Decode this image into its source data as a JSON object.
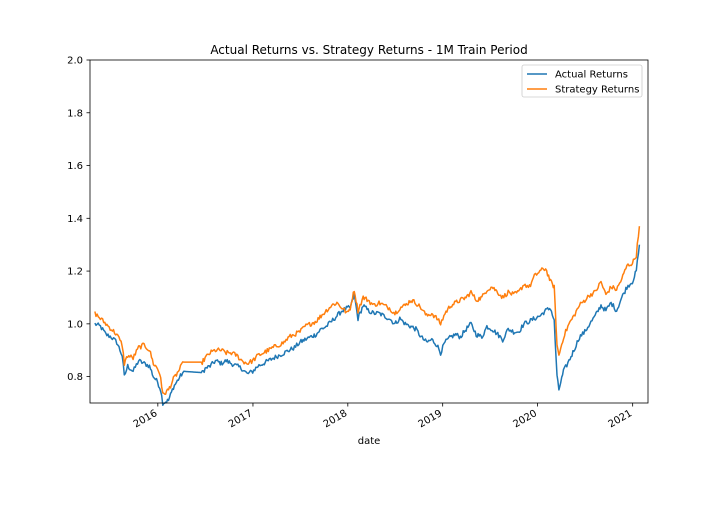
{
  "chart_data": {
    "type": "line",
    "title": "Actual Returns vs. Strategy Returns - 1M Train Period",
    "xlabel": "date",
    "ylabel": "",
    "xlim": [
      "2015-04-15",
      "2021-03-01"
    ],
    "ylim": [
      0.7,
      2.0
    ],
    "x_ticks": [
      {
        "date": "2016-01-01",
        "label": "2016"
      },
      {
        "date": "2017-01-01",
        "label": "2017"
      },
      {
        "date": "2018-01-01",
        "label": "2018"
      },
      {
        "date": "2019-01-01",
        "label": "2019"
      },
      {
        "date": "2020-01-01",
        "label": "2020"
      },
      {
        "date": "2021-01-01",
        "label": "2021"
      }
    ],
    "y_ticks": [
      {
        "value": 0.8,
        "label": "0.8"
      },
      {
        "value": 1.0,
        "label": "1.0"
      },
      {
        "value": 1.2,
        "label": "1.2"
      },
      {
        "value": 1.4,
        "label": "1.4"
      },
      {
        "value": 1.6,
        "label": "1.6"
      },
      {
        "value": 1.8,
        "label": "1.8"
      },
      {
        "value": 2.0,
        "label": "2.0"
      }
    ],
    "grid": false,
    "legend_position": "top-right",
    "series": [
      {
        "name": "Actual Returns",
        "color": "#1f77b4",
        "points": [
          [
            "2015-05-04",
            1.0
          ],
          [
            "2015-05-25",
            0.99
          ],
          [
            "2015-06-15",
            0.96
          ],
          [
            "2015-07-06",
            0.95
          ],
          [
            "2015-07-27",
            0.93
          ],
          [
            "2015-08-17",
            0.88
          ],
          [
            "2015-08-25",
            0.8
          ],
          [
            "2015-09-07",
            0.84
          ],
          [
            "2015-09-28",
            0.82
          ],
          [
            "2015-10-19",
            0.86
          ],
          [
            "2015-11-09",
            0.85
          ],
          [
            "2015-11-30",
            0.84
          ],
          [
            "2015-12-15",
            0.8
          ],
          [
            "2015-12-31",
            0.78
          ],
          [
            "2016-01-12",
            0.75
          ],
          [
            "2016-01-20",
            0.7
          ],
          [
            "2016-02-11",
            0.71
          ],
          [
            "2016-03-01",
            0.76
          ],
          [
            "2016-03-20",
            0.79
          ],
          [
            "2016-04-10",
            0.82
          ],
          [
            "2016-06-20",
            0.815
          ],
          [
            "2016-07-01",
            0.83
          ],
          [
            "2016-07-20",
            0.84
          ],
          [
            "2016-08-10",
            0.86
          ],
          [
            "2016-09-01",
            0.85
          ],
          [
            "2016-09-20",
            0.86
          ],
          [
            "2016-10-10",
            0.85
          ],
          [
            "2016-10-31",
            0.84
          ],
          [
            "2016-11-20",
            0.83
          ],
          [
            "2016-12-10",
            0.81
          ],
          [
            "2016-12-31",
            0.82
          ],
          [
            "2017-01-20",
            0.84
          ],
          [
            "2017-02-10",
            0.85
          ],
          [
            "2017-03-01",
            0.86
          ],
          [
            "2017-03-20",
            0.87
          ],
          [
            "2017-04-10",
            0.88
          ],
          [
            "2017-05-01",
            0.89
          ],
          [
            "2017-05-20",
            0.9
          ],
          [
            "2017-06-10",
            0.91
          ],
          [
            "2017-07-01",
            0.93
          ],
          [
            "2017-07-20",
            0.94
          ],
          [
            "2017-08-10",
            0.95
          ],
          [
            "2017-09-01",
            0.96
          ],
          [
            "2017-09-20",
            0.98
          ],
          [
            "2017-10-10",
            0.99
          ],
          [
            "2017-10-31",
            1.01
          ],
          [
            "2017-11-20",
            1.03
          ],
          [
            "2017-12-10",
            1.05
          ],
          [
            "2017-12-31",
            1.06
          ],
          [
            "2018-01-10",
            1.06
          ],
          [
            "2018-01-26",
            1.11
          ],
          [
            "2018-02-09",
            1.02
          ],
          [
            "2018-03-01",
            1.07
          ],
          [
            "2018-03-20",
            1.05
          ],
          [
            "2018-04-10",
            1.04
          ],
          [
            "2018-05-01",
            1.04
          ],
          [
            "2018-05-20",
            1.03
          ],
          [
            "2018-06-10",
            1.02
          ],
          [
            "2018-07-01",
            1.0
          ],
          [
            "2018-07-20",
            1.02
          ],
          [
            "2018-08-10",
            1.0
          ],
          [
            "2018-09-01",
            0.99
          ],
          [
            "2018-09-20",
            0.98
          ],
          [
            "2018-10-10",
            0.95
          ],
          [
            "2018-10-31",
            0.93
          ],
          [
            "2018-11-20",
            0.94
          ],
          [
            "2018-12-10",
            0.92
          ],
          [
            "2018-12-24",
            0.89
          ],
          [
            "2019-01-10",
            0.93
          ],
          [
            "2019-02-01",
            0.95
          ],
          [
            "2019-02-20",
            0.96
          ],
          [
            "2019-03-10",
            0.95
          ],
          [
            "2019-04-01",
            0.98
          ],
          [
            "2019-04-20",
            1.0
          ],
          [
            "2019-05-10",
            0.96
          ],
          [
            "2019-06-01",
            0.95
          ],
          [
            "2019-06-20",
            0.99
          ],
          [
            "2019-07-10",
            0.98
          ],
          [
            "2019-08-01",
            0.96
          ],
          [
            "2019-08-20",
            0.94
          ],
          [
            "2019-09-10",
            0.98
          ],
          [
            "2019-10-01",
            0.97
          ],
          [
            "2019-10-20",
            0.97
          ],
          [
            "2019-11-10",
            1.0
          ],
          [
            "2019-12-01",
            1.01
          ],
          [
            "2019-12-20",
            1.02
          ],
          [
            "2020-01-10",
            1.03
          ],
          [
            "2020-02-01",
            1.05
          ],
          [
            "2020-02-20",
            1.06
          ],
          [
            "2020-03-05",
            1.01
          ],
          [
            "2020-03-16",
            0.8
          ],
          [
            "2020-03-23",
            0.75
          ],
          [
            "2020-04-10",
            0.82
          ],
          [
            "2020-05-01",
            0.86
          ],
          [
            "2020-05-20",
            0.9
          ],
          [
            "2020-06-10",
            0.95
          ],
          [
            "2020-07-01",
            0.97
          ],
          [
            "2020-07-20",
            1.0
          ],
          [
            "2020-08-10",
            1.03
          ],
          [
            "2020-09-01",
            1.07
          ],
          [
            "2020-09-20",
            1.05
          ],
          [
            "2020-10-10",
            1.08
          ],
          [
            "2020-10-31",
            1.05
          ],
          [
            "2020-11-20",
            1.1
          ],
          [
            "2020-12-10",
            1.14
          ],
          [
            "2020-12-31",
            1.16
          ],
          [
            "2021-01-15",
            1.2
          ],
          [
            "2021-01-27",
            1.3
          ]
        ]
      },
      {
        "name": "Strategy Returns",
        "color": "#ff7f0e",
        "points": [
          [
            "2015-05-04",
            1.04
          ],
          [
            "2015-05-25",
            1.02
          ],
          [
            "2015-06-15",
            1.0
          ],
          [
            "2015-07-06",
            0.98
          ],
          [
            "2015-07-27",
            0.96
          ],
          [
            "2015-08-17",
            0.92
          ],
          [
            "2015-08-25",
            0.85
          ],
          [
            "2015-09-07",
            0.88
          ],
          [
            "2015-09-28",
            0.87
          ],
          [
            "2015-10-19",
            0.91
          ],
          [
            "2015-11-09",
            0.92
          ],
          [
            "2015-11-30",
            0.9
          ],
          [
            "2015-12-15",
            0.85
          ],
          [
            "2015-12-31",
            0.83
          ],
          [
            "2016-01-12",
            0.8
          ],
          [
            "2016-01-20",
            0.73
          ],
          [
            "2016-02-11",
            0.75
          ],
          [
            "2016-03-01",
            0.79
          ],
          [
            "2016-03-20",
            0.82
          ],
          [
            "2016-04-10",
            0.855
          ],
          [
            "2016-06-20",
            0.855
          ],
          [
            "2016-07-01",
            0.87
          ],
          [
            "2016-07-20",
            0.89
          ],
          [
            "2016-08-10",
            0.9
          ],
          [
            "2016-09-01",
            0.9
          ],
          [
            "2016-09-20",
            0.89
          ],
          [
            "2016-10-10",
            0.89
          ],
          [
            "2016-10-31",
            0.88
          ],
          [
            "2016-11-20",
            0.86
          ],
          [
            "2016-12-10",
            0.85
          ],
          [
            "2016-12-31",
            0.86
          ],
          [
            "2017-01-20",
            0.88
          ],
          [
            "2017-02-10",
            0.89
          ],
          [
            "2017-03-01",
            0.9
          ],
          [
            "2017-03-20",
            0.91
          ],
          [
            "2017-04-10",
            0.92
          ],
          [
            "2017-05-01",
            0.93
          ],
          [
            "2017-05-20",
            0.95
          ],
          [
            "2017-06-10",
            0.96
          ],
          [
            "2017-07-01",
            0.97
          ],
          [
            "2017-07-20",
            0.99
          ],
          [
            "2017-08-10",
            1.0
          ],
          [
            "2017-09-01",
            1.01
          ],
          [
            "2017-09-20",
            1.03
          ],
          [
            "2017-10-10",
            1.05
          ],
          [
            "2017-10-31",
            1.07
          ],
          [
            "2017-11-20",
            1.08
          ],
          [
            "2017-12-10",
            1.06
          ],
          [
            "2017-12-31",
            1.04
          ],
          [
            "2018-01-10",
            1.06
          ],
          [
            "2018-01-26",
            1.13
          ],
          [
            "2018-02-09",
            1.05
          ],
          [
            "2018-03-01",
            1.1
          ],
          [
            "2018-03-20",
            1.09
          ],
          [
            "2018-04-10",
            1.07
          ],
          [
            "2018-05-01",
            1.08
          ],
          [
            "2018-05-20",
            1.07
          ],
          [
            "2018-06-10",
            1.06
          ],
          [
            "2018-07-01",
            1.04
          ],
          [
            "2018-07-20",
            1.06
          ],
          [
            "2018-08-10",
            1.07
          ],
          [
            "2018-09-01",
            1.09
          ],
          [
            "2018-09-20",
            1.08
          ],
          [
            "2018-10-10",
            1.06
          ],
          [
            "2018-10-31",
            1.03
          ],
          [
            "2018-11-20",
            1.04
          ],
          [
            "2018-12-10",
            1.02
          ],
          [
            "2018-12-24",
            1.0
          ],
          [
            "2019-01-10",
            1.04
          ],
          [
            "2019-02-01",
            1.07
          ],
          [
            "2019-02-20",
            1.08
          ],
          [
            "2019-03-10",
            1.09
          ],
          [
            "2019-04-01",
            1.1
          ],
          [
            "2019-04-20",
            1.12
          ],
          [
            "2019-05-10",
            1.09
          ],
          [
            "2019-06-01",
            1.1
          ],
          [
            "2019-06-20",
            1.13
          ],
          [
            "2019-07-10",
            1.14
          ],
          [
            "2019-08-01",
            1.12
          ],
          [
            "2019-08-20",
            1.1
          ],
          [
            "2019-09-10",
            1.12
          ],
          [
            "2019-10-01",
            1.11
          ],
          [
            "2019-10-20",
            1.12
          ],
          [
            "2019-11-10",
            1.15
          ],
          [
            "2019-12-01",
            1.14
          ],
          [
            "2019-12-20",
            1.18
          ],
          [
            "2020-01-10",
            1.2
          ],
          [
            "2020-02-01",
            1.21
          ],
          [
            "2020-02-20",
            1.16
          ],
          [
            "2020-03-05",
            1.14
          ],
          [
            "2020-03-16",
            0.92
          ],
          [
            "2020-03-23",
            0.88
          ],
          [
            "2020-04-10",
            0.95
          ],
          [
            "2020-05-01",
            1.0
          ],
          [
            "2020-05-20",
            1.03
          ],
          [
            "2020-06-10",
            1.07
          ],
          [
            "2020-07-01",
            1.09
          ],
          [
            "2020-07-20",
            1.11
          ],
          [
            "2020-08-10",
            1.12
          ],
          [
            "2020-09-01",
            1.16
          ],
          [
            "2020-09-20",
            1.11
          ],
          [
            "2020-10-10",
            1.14
          ],
          [
            "2020-10-31",
            1.13
          ],
          [
            "2020-11-20",
            1.17
          ],
          [
            "2020-12-10",
            1.22
          ],
          [
            "2020-12-31",
            1.23
          ],
          [
            "2021-01-15",
            1.26
          ],
          [
            "2021-01-27",
            1.37
          ]
        ]
      }
    ]
  }
}
